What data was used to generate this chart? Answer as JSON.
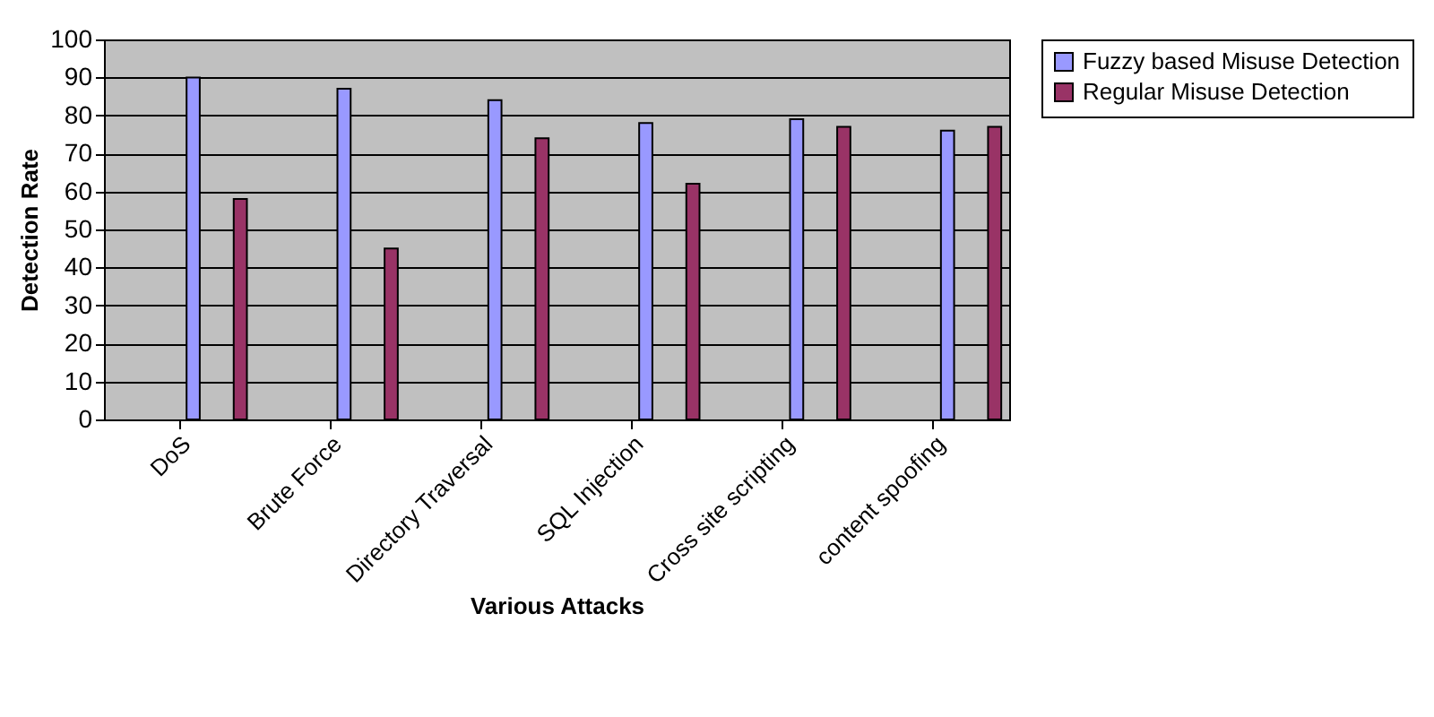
{
  "chart_data": {
    "type": "bar",
    "xlabel": "Various Attacks",
    "ylabel": "Detection Rate",
    "categories": [
      "DoS",
      "Brute Force",
      "Directory Traversal",
      "SQL Injection",
      "Cross site scripting",
      "content spoofing"
    ],
    "series": [
      {
        "name": "Fuzzy based Misuse Detection",
        "color": "#9999ff",
        "values": [
          90,
          87,
          84,
          78,
          79,
          76
        ]
      },
      {
        "name": "Regular Misuse Detection",
        "color": "#993366",
        "values": [
          58,
          45,
          74,
          62,
          77,
          77
        ]
      }
    ],
    "ylim": [
      0,
      100
    ],
    "yticks": [
      0,
      10,
      20,
      30,
      40,
      50,
      60,
      70,
      80,
      90,
      100
    ],
    "grid": "y",
    "legend": "right"
  }
}
